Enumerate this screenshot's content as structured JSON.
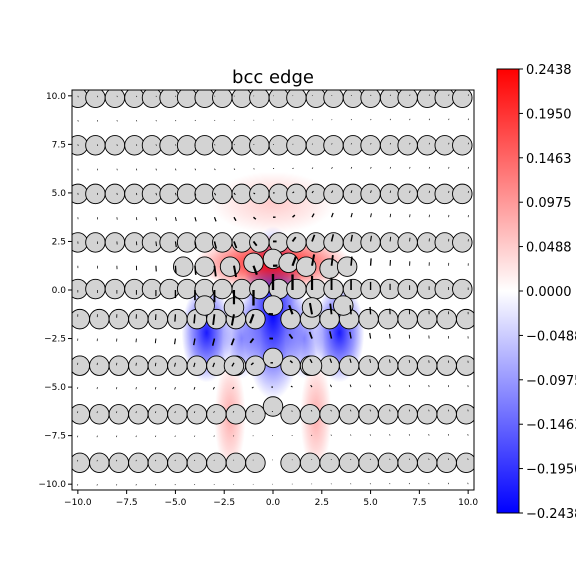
{
  "chart_data": {
    "type": "heatmap",
    "title": "bcc edge",
    "xlabel": "",
    "ylabel": "",
    "xlim": [
      -10.3,
      10.3
    ],
    "ylim": [
      -10.3,
      10.3
    ],
    "x_ticks": [
      -10.0,
      -7.5,
      -5.0,
      -2.5,
      0.0,
      2.5,
      5.0,
      7.5,
      10.0
    ],
    "y_ticks": [
      -10.0,
      -7.5,
      -5.0,
      -2.5,
      0.0,
      2.5,
      5.0,
      7.5,
      10.0
    ],
    "x_tick_labels": [
      "−10.0",
      "−7.5",
      "−5.0",
      "−2.5",
      "0.0",
      "2.5",
      "5.0",
      "7.5",
      "10.0"
    ],
    "y_tick_labels": [
      "−10.0",
      "−7.5",
      "−5.0",
      "−2.5",
      "0.0",
      "2.5",
      "5.0",
      "7.5",
      "10.0"
    ],
    "colormap": "bwr",
    "colorbar": {
      "min": -0.2438,
      "max": 0.2438,
      "ticks": [
        0.2438,
        0.195,
        0.1463,
        0.0975,
        0.0488,
        0.0,
        -0.0488,
        -0.0975,
        -0.1463,
        -0.195,
        -0.2438
      ],
      "tick_labels": [
        "0.2438",
        "0.1950",
        "0.1463",
        "0.0975",
        "0.0488",
        "0.0000",
        "−0.0488",
        "−0.0975",
        "−0.1463",
        "−0.1950",
        "−0.2438"
      ]
    },
    "atoms": {
      "radius": 0.5,
      "fill": "#d3d3d3",
      "edge": "#000000",
      "upper_rows_y": [
        0.05,
        2.45,
        4.95,
        7.45,
        9.9
      ],
      "upper_rows_x": [
        -10.0,
        -9.1,
        -8.1,
        -7.1,
        -6.2,
        -5.3,
        -4.4,
        -3.5,
        -2.6,
        -1.6,
        -0.7,
        0.3,
        1.2,
        2.2,
        3.1,
        4.1,
        5.0,
        6.0,
        6.9,
        7.9,
        8.8,
        9.7
      ],
      "lower_rows_y": [
        -1.5,
        -3.9,
        -6.4,
        -8.9
      ],
      "lower_rows_x": [
        -9.9,
        -8.9,
        -7.9,
        -6.9,
        -5.9,
        -4.9,
        -3.9,
        -2.9,
        -1.9,
        -0.9,
        0.9,
        1.9,
        2.9,
        3.9,
        4.9,
        5.9,
        6.9,
        7.9,
        8.9,
        9.9
      ],
      "core_atoms": [
        [
          -4.6,
          1.2
        ],
        [
          -3.5,
          1.2
        ],
        [
          -2.2,
          1.2
        ],
        [
          -1.0,
          1.4
        ],
        [
          0.0,
          1.6
        ],
        [
          0.8,
          1.4
        ],
        [
          1.7,
          1.2
        ],
        [
          2.9,
          1.1
        ],
        [
          3.8,
          1.2
        ],
        [
          -3.5,
          -0.8
        ],
        [
          -2.0,
          -0.9
        ],
        [
          0.0,
          -0.8
        ],
        [
          2.0,
          -0.9
        ],
        [
          3.6,
          -0.8
        ],
        [
          -2.0,
          -3.9
        ],
        [
          0.0,
          -3.5
        ],
        [
          2.0,
          -3.9
        ],
        [
          0.0,
          -6.0
        ]
      ]
    },
    "field": [
      {
        "x": 0.0,
        "y": -1.2,
        "sx": 1.0,
        "sy": 2.8,
        "v": -0.2438
      },
      {
        "x": -3.4,
        "y": -2.2,
        "sx": 0.8,
        "sy": 1.6,
        "v": -0.22
      },
      {
        "x": 3.4,
        "y": -2.2,
        "sx": 0.8,
        "sy": 1.6,
        "v": -0.22
      },
      {
        "x": -1.6,
        "y": -2.5,
        "sx": 0.6,
        "sy": 1.3,
        "v": -0.12
      },
      {
        "x": 1.6,
        "y": -2.5,
        "sx": 0.6,
        "sy": 1.3,
        "v": -0.12
      },
      {
        "x": 0.0,
        "y": 1.4,
        "sx": 2.5,
        "sy": 0.9,
        "v": 0.2438
      },
      {
        "x": -2.2,
        "y": -6.5,
        "sx": 0.5,
        "sy": 1.8,
        "v": 0.08
      },
      {
        "x": 2.2,
        "y": -6.5,
        "sx": 0.5,
        "sy": 1.8,
        "v": 0.08
      },
      {
        "x": 0.0,
        "y": 4.5,
        "sx": 2.0,
        "sy": 1.0,
        "v": 0.05
      }
    ]
  }
}
